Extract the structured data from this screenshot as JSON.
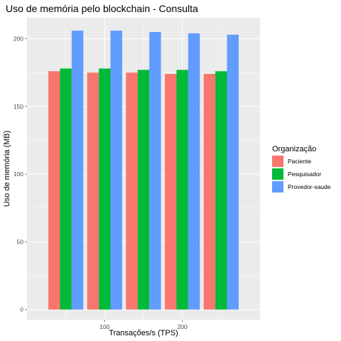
{
  "chart_data": {
    "type": "bar",
    "title": "Uso de memória pelo blockchain - Consulta",
    "xlabel": "Transações/s (TPS)",
    "ylabel": "Uso de memória (MB)",
    "categories": [
      50,
      100,
      150,
      200,
      250
    ],
    "x_ticks": [
      "100",
      "200"
    ],
    "x_tick_values": [
      100,
      200
    ],
    "xlim": [
      0,
      300
    ],
    "ylim": [
      -7.5,
      215.5
    ],
    "y_ticks": [
      "0",
      "50",
      "100",
      "150",
      "200"
    ],
    "y_tick_values": [
      0,
      50,
      100,
      150,
      200
    ],
    "grid": true,
    "legend": {
      "title": "Organização",
      "placement": "right"
    },
    "series": [
      {
        "name": "Paciente",
        "color": "#F8766D",
        "values": [
          176,
          175,
          175,
          174,
          174
        ]
      },
      {
        "name": "Pesquisador",
        "color": "#00BA38",
        "values": [
          178,
          178,
          177,
          177,
          176
        ]
      },
      {
        "name": "Provedor-saude",
        "color": "#619CFF",
        "values": [
          206,
          206,
          205,
          204,
          203
        ]
      }
    ]
  }
}
